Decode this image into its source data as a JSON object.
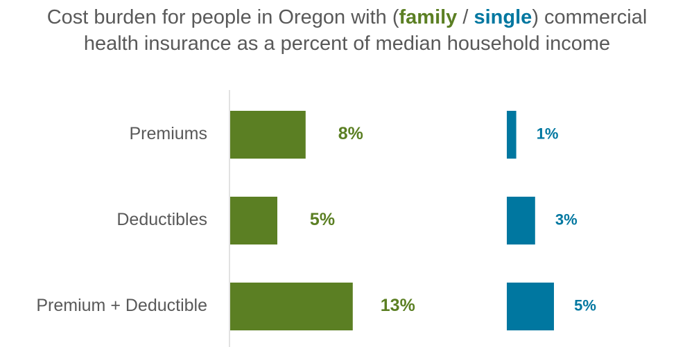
{
  "chart_data": {
    "type": "bar",
    "orientation": "horizontal",
    "title": [
      "Cost burden for people in Oregon with (",
      " / ",
      ") commercial health insurance as a percent of median household income"
    ],
    "categories": [
      "Premiums",
      "Deductibles",
      "Premium + Deductible"
    ],
    "series": [
      {
        "name": "family",
        "color": "#5b7f23",
        "values": [
          8,
          5,
          13
        ],
        "value_labels": [
          "8%",
          "5%",
          "13%"
        ]
      },
      {
        "name": "single",
        "color": "#0077a0",
        "values": [
          1,
          3,
          5
        ],
        "value_labels": [
          "1%",
          "3%",
          "5%"
        ]
      }
    ]
  }
}
